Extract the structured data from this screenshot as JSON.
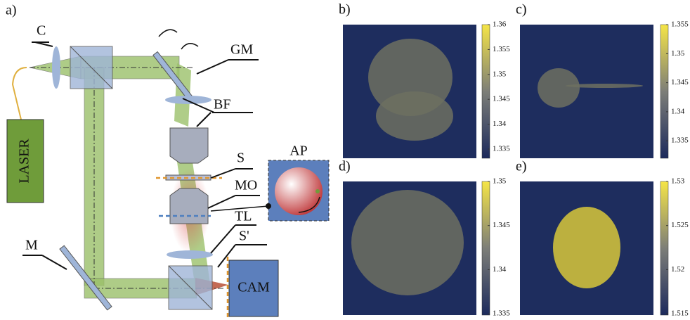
{
  "label": "a)",
  "setup": {
    "collimator": "C",
    "galvo": "GM",
    "filter": "BF",
    "sample": "S",
    "objective": "MO",
    "tube_lens": "TL",
    "sample_plane": "S'",
    "mirror": "M",
    "laser": "LASER",
    "camera": "CAM",
    "aperture": "AP"
  },
  "panels": [
    {
      "label": "b)",
      "ticks": [
        "1.36",
        "1.355",
        "1.35",
        "1.345",
        "1.34",
        "1.335"
      ]
    },
    {
      "label": "c)",
      "ticks": [
        "1.355",
        "1.35",
        "1.345",
        "1.34",
        "1.335"
      ]
    },
    {
      "label": "d)",
      "ticks": [
        "1.35",
        "1.345",
        "1.34",
        "1.335"
      ]
    },
    {
      "label": "e)",
      "ticks": [
        "1.53",
        "1.525",
        "1.52",
        "1.515"
      ]
    }
  ]
}
